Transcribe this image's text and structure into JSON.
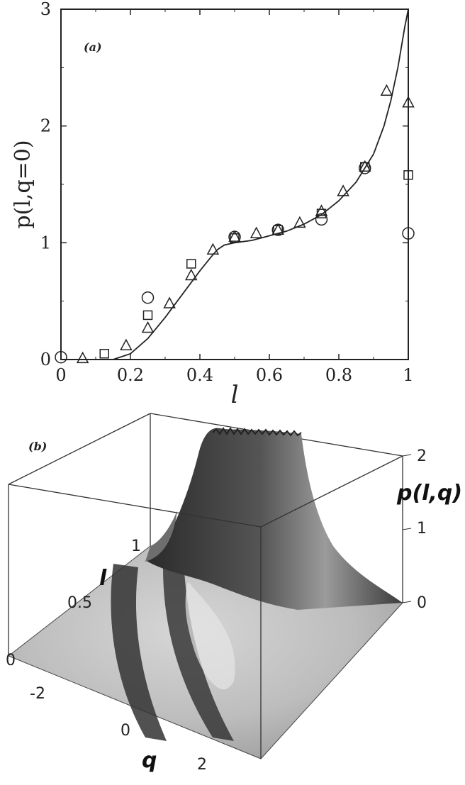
{
  "chart_data": [
    {
      "type": "scatter",
      "panel_label": "(a)",
      "ylabel": "p(l,q=0)",
      "xlabel": "l",
      "xlim": [
        0,
        1
      ],
      "ylim": [
        0,
        3
      ],
      "x_ticks": [
        "0",
        "0.2",
        "0.4",
        "0.6",
        "0.8",
        "1"
      ],
      "y_ticks": [
        "0",
        "1",
        "2",
        "3"
      ],
      "series": [
        {
          "marker": "curve",
          "x": [
            0,
            0.1,
            0.15,
            0.2,
            0.25,
            0.3,
            0.35,
            0.4,
            0.43,
            0.45,
            0.47,
            0.5,
            0.55,
            0.6,
            0.65,
            0.7,
            0.75,
            0.8,
            0.85,
            0.9,
            0.93,
            0.95,
            0.97,
            0.99,
            1.0
          ],
          "y": [
            0,
            0,
            0,
            0.05,
            0.18,
            0.36,
            0.56,
            0.76,
            0.87,
            0.94,
            0.98,
            1.0,
            1.02,
            1.06,
            1.1,
            1.16,
            1.24,
            1.36,
            1.52,
            1.76,
            2.0,
            2.22,
            2.5,
            2.85,
            3.0
          ]
        },
        {
          "marker": "circle",
          "x": [
            0,
            0.25,
            0.5,
            0.625,
            0.75,
            0.875,
            1.0
          ],
          "y": [
            0.02,
            0.53,
            1.05,
            1.11,
            1.2,
            1.64,
            1.08
          ]
        },
        {
          "marker": "square",
          "x": [
            0.125,
            0.25,
            0.375,
            0.5,
            0.625,
            0.75,
            0.875,
            1.0
          ],
          "y": [
            0.05,
            0.38,
            0.82,
            1.04,
            1.11,
            1.25,
            1.65,
            1.58
          ]
        },
        {
          "marker": "triangle",
          "x": [
            0.0625,
            0.1875,
            0.25,
            0.3125,
            0.375,
            0.4375,
            0.5,
            0.5625,
            0.625,
            0.6875,
            0.75,
            0.8125,
            0.875,
            0.9375,
            1.0
          ],
          "y": [
            0.01,
            0.12,
            0.27,
            0.48,
            0.72,
            0.94,
            1.05,
            1.08,
            1.11,
            1.17,
            1.27,
            1.44,
            1.65,
            2.3,
            2.2
          ]
        }
      ]
    },
    {
      "type": "surface",
      "panel_label": "(b)",
      "z_label": "p(l,q)",
      "l_label": "l",
      "q_label": "q",
      "l_ticks": [
        "0",
        "0.5",
        "1"
      ],
      "q_ticks": [
        "-2",
        "0",
        "2"
      ],
      "z_ticks": [
        "0",
        "1",
        "2"
      ]
    }
  ]
}
